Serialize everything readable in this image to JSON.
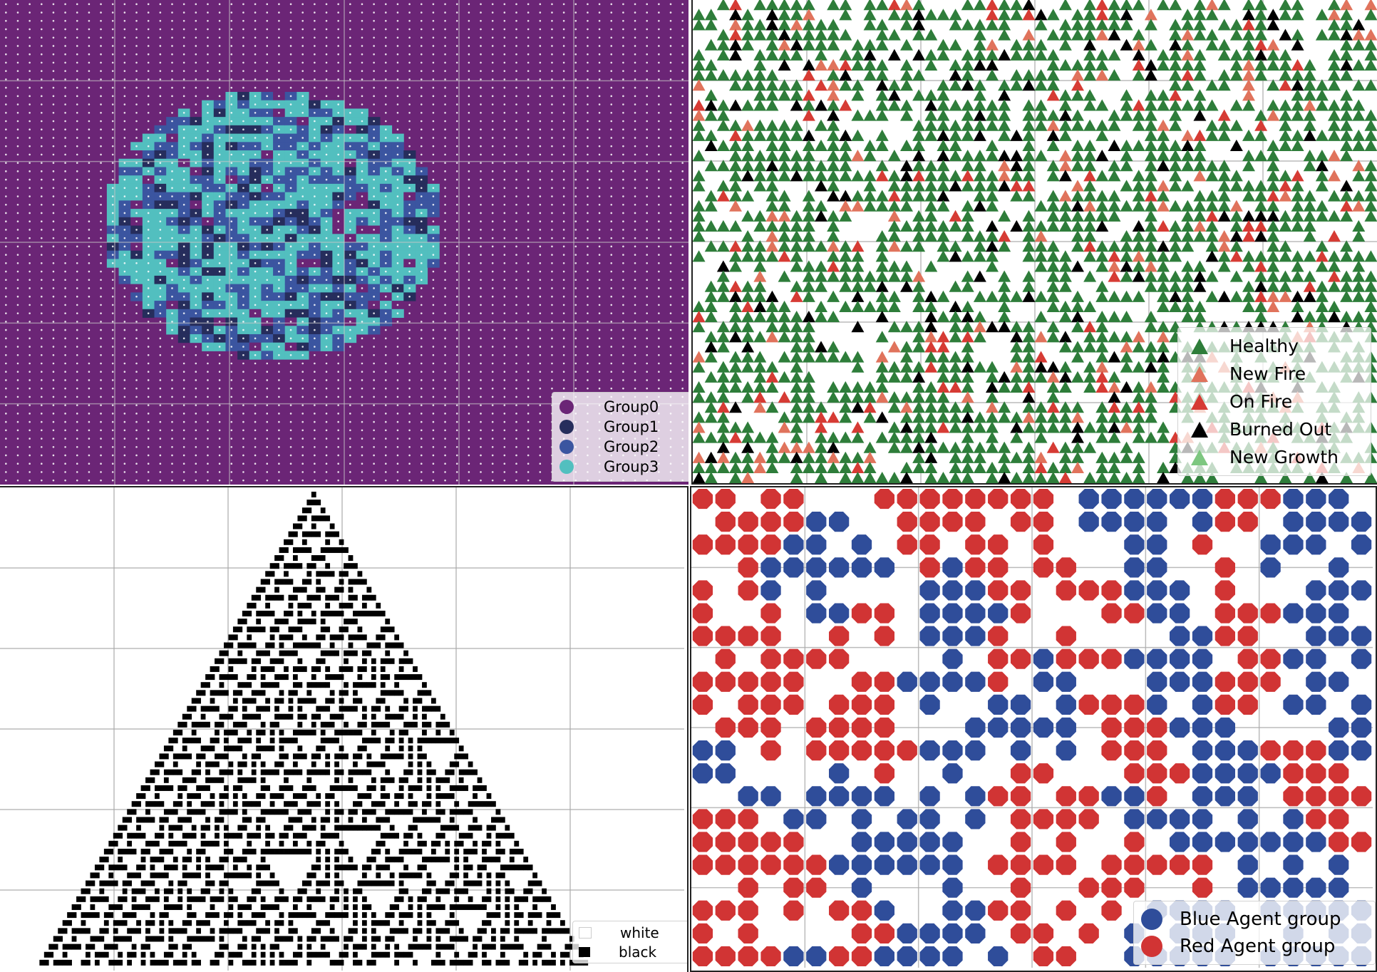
{
  "chart_data": [
    {
      "type": "heatmap",
      "panel": "top-left",
      "grid_size": 58,
      "shape": "ellipse",
      "categories": [
        "Group0",
        "Group1",
        "Group2",
        "Group3"
      ],
      "colors": [
        "#6b2576",
        "#262d5c",
        "#3b55a0",
        "#52bfbf"
      ],
      "background_dot_color": "#ffffff",
      "grid": true,
      "legend": {
        "placement": "bottom-right",
        "entries": [
          {
            "label": "Group0",
            "color": "#6b2576"
          },
          {
            "label": "Group1",
            "color": "#262d5c"
          },
          {
            "label": "Group2",
            "color": "#3b55a0"
          },
          {
            "label": "Group3",
            "color": "#52bfbf"
          }
        ]
      }
    },
    {
      "type": "scatter",
      "panel": "top-right",
      "marker": "triangle",
      "grid": true,
      "series": [
        {
          "name": "Healthy",
          "color": "#2e7d3a",
          "share": 0.78
        },
        {
          "name": "New Fire",
          "color": "#e0735c",
          "share": 0.06
        },
        {
          "name": "On Fire",
          "color": "#d63b34",
          "share": 0.06
        },
        {
          "name": "Burned Out",
          "color": "#000000",
          "share": 0.1
        },
        {
          "name": "New Growth",
          "color": "#7dc780",
          "share": 0.0
        }
      ],
      "legend": {
        "placement": "bottom-right"
      }
    },
    {
      "type": "heatmap",
      "panel": "bottom-left",
      "pattern": "elementary cellular automaton (triangle)",
      "marker": "square",
      "grid": true,
      "series": [
        {
          "name": "white",
          "color": "#ffffff"
        },
        {
          "name": "black",
          "color": "#000000"
        }
      ],
      "legend": {
        "placement": "bottom-right"
      }
    },
    {
      "type": "scatter",
      "panel": "bottom-right",
      "marker": "octagon",
      "grid": true,
      "series": [
        {
          "name": "Blue Agent group",
          "color": "#2f4d9a"
        },
        {
          "name": "Red Agent group",
          "color": "#d13434"
        }
      ],
      "legend": {
        "placement": "bottom-right"
      }
    }
  ]
}
